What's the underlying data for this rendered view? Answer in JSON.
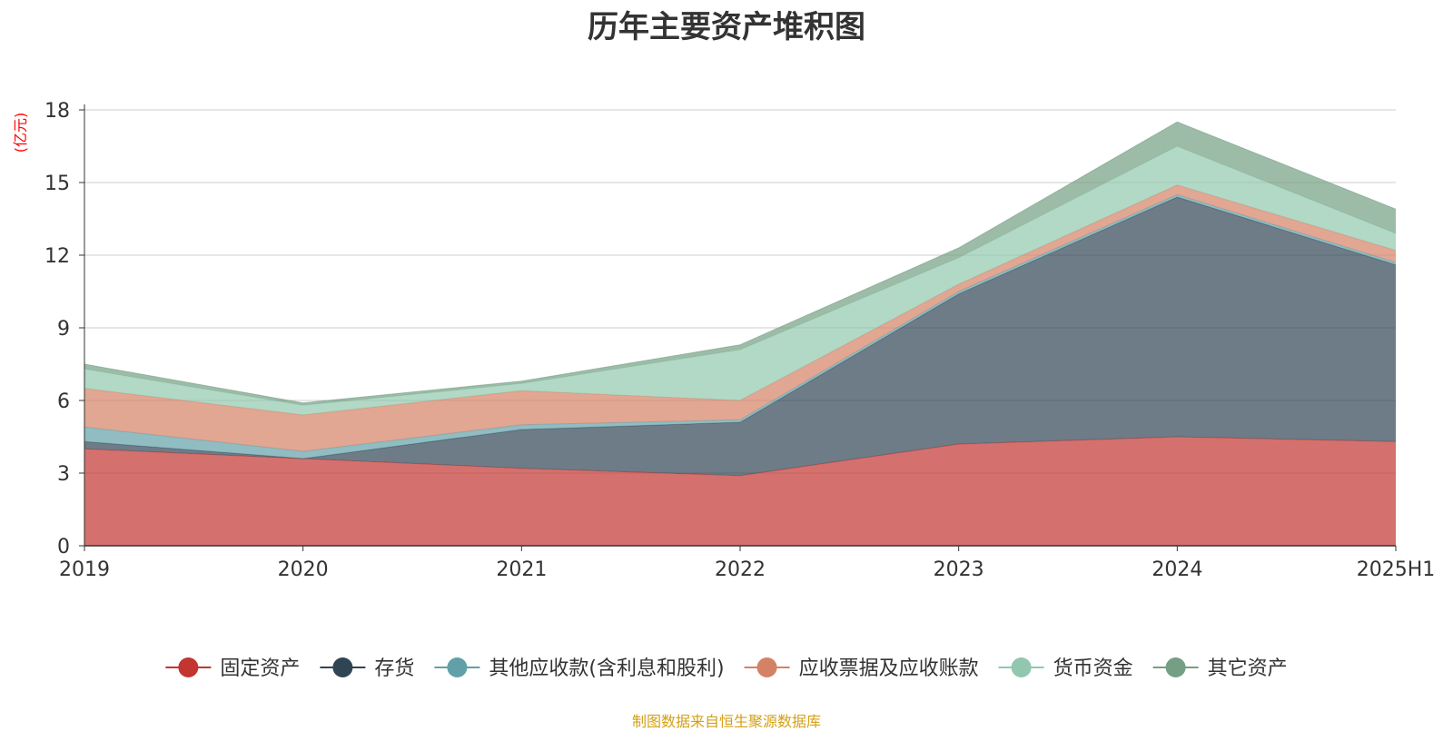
{
  "chart_data": {
    "type": "area",
    "stacked": true,
    "title": "历年主要资产堆积图",
    "ylabel": "(亿元)",
    "xlabel": "",
    "categories": [
      "2019",
      "2020",
      "2021",
      "2022",
      "2023",
      "2024",
      "2025H1"
    ],
    "ylim": [
      0,
      18
    ],
    "yticks": [
      0,
      3,
      6,
      9,
      12,
      15,
      18
    ],
    "grid": true,
    "legend_position": "bottom",
    "series": [
      {
        "name": "固定资产",
        "values": [
          4.0,
          3.6,
          3.2,
          2.9,
          4.2,
          4.5,
          4.3
        ],
        "color": "#c23531"
      },
      {
        "name": "存货",
        "values": [
          0.3,
          0.0,
          1.6,
          2.2,
          6.2,
          9.9,
          7.3
        ],
        "color": "#2f4554"
      },
      {
        "name": "其他应收款(含利息和股利)",
        "values": [
          0.6,
          0.3,
          0.2,
          0.1,
          0.1,
          0.1,
          0.1
        ],
        "color": "#61a0a8"
      },
      {
        "name": "应收票据及应收账款",
        "values": [
          1.6,
          1.5,
          1.4,
          0.8,
          0.3,
          0.4,
          0.5
        ],
        "color": "#d48265"
      },
      {
        "name": "货币资金",
        "values": [
          0.8,
          0.4,
          0.3,
          2.1,
          1.1,
          1.6,
          0.7
        ],
        "color": "#91c7ae"
      },
      {
        "name": "其它资产",
        "values": [
          0.2,
          0.1,
          0.1,
          0.2,
          0.4,
          1.0,
          1.0
        ],
        "color": "#749f83"
      }
    ]
  },
  "source_note": "制图数据来自恒生聚源数据库",
  "colors": {
    "title": "#333333",
    "ylabel": "#ff0000",
    "source_note": "#d4a017",
    "grid": "#cccccc",
    "axis": "#333333"
  }
}
